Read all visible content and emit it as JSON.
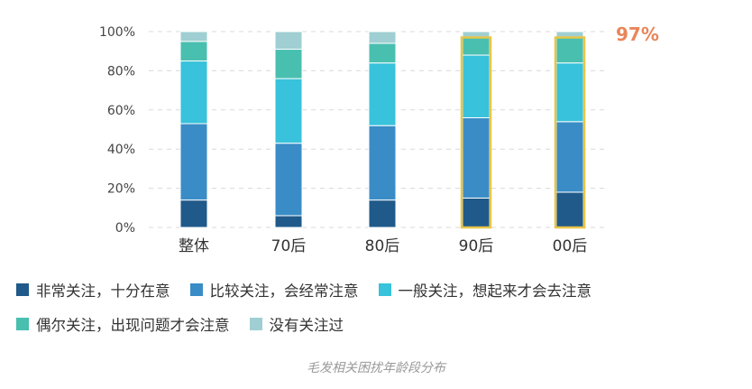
{
  "chart_data": {
    "type": "bar",
    "stacked": true,
    "categories": [
      "整体",
      "70后",
      "80后",
      "90后",
      "00后"
    ],
    "ylim": [
      0,
      100
    ],
    "yticks": [
      "0%",
      "20%",
      "40%",
      "60%",
      "80%",
      "100%"
    ],
    "grid": true,
    "legend_position": "bottom",
    "series": [
      {
        "name": "非常关注，十分在意",
        "color": "#1f5a8a",
        "values": [
          14,
          6,
          14,
          15,
          18
        ]
      },
      {
        "name": "比较关注，会经常注意",
        "color": "#3a8cc6",
        "values": [
          39,
          37,
          38,
          41,
          36
        ]
      },
      {
        "name": "一般关注，想起来才会去注意",
        "color": "#38c2db",
        "values": [
          32,
          33,
          32,
          32,
          30
        ]
      },
      {
        "name": "偶尔关注，出现问题才会注意",
        "color": "#49bfb0",
        "values": [
          10,
          15,
          10,
          9,
          13
        ]
      },
      {
        "name": "没有关注过",
        "color": "#9fcfd2",
        "values": [
          5,
          9,
          6,
          3,
          3
        ]
      }
    ],
    "highlight": {
      "categories": [
        "90后",
        "00后"
      ],
      "color": "#e8c547"
    },
    "annotation": "97%"
  },
  "caption": "毛发相关困扰年龄段分布"
}
